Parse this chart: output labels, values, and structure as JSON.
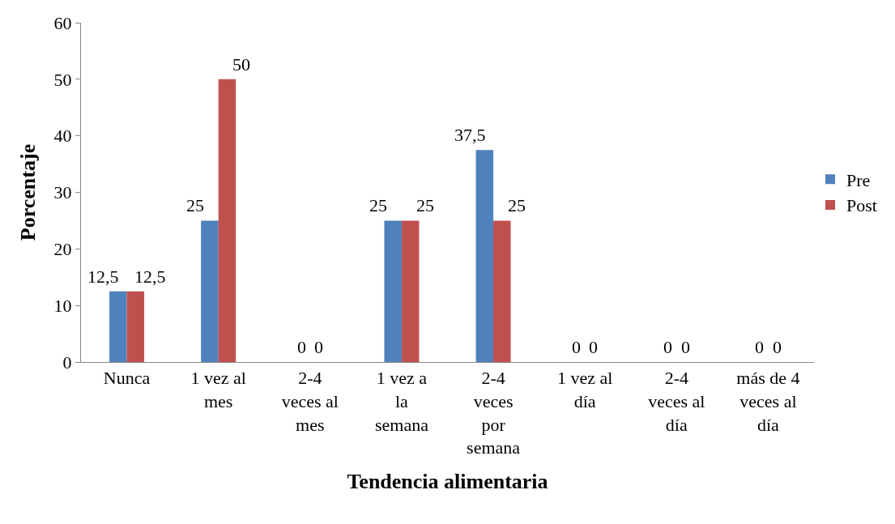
{
  "chart_data": {
    "type": "bar",
    "xlabel": "Tendencia alimentaria",
    "ylabel": "Porcentaje",
    "categories": [
      "Nunca",
      "1 vez al mes",
      "2-4 veces al mes",
      "1 vez a la semana",
      "2-4 veces por semana",
      "1 vez al día",
      "2-4 veces al día",
      "más de 4 veces al día"
    ],
    "series": [
      {
        "name": "Pre",
        "color": "#4f81bd",
        "values": [
          12.5,
          25,
          0,
          25,
          37.5,
          0,
          0,
          0
        ],
        "value_labels": [
          "12,5",
          "25",
          "0",
          "25",
          "37,5",
          "0",
          "0",
          "0"
        ]
      },
      {
        "name": "Post",
        "color": "#c0504d",
        "values": [
          12.5,
          50,
          0,
          25,
          25,
          0,
          0,
          0
        ],
        "value_labels": [
          "12,5",
          "50",
          "0",
          "25",
          "25",
          "0",
          "0",
          "0"
        ]
      }
    ],
    "ylim": [
      0,
      60
    ],
    "yticks": [
      0,
      10,
      20,
      30,
      40,
      50,
      60
    ],
    "legend": "right"
  }
}
